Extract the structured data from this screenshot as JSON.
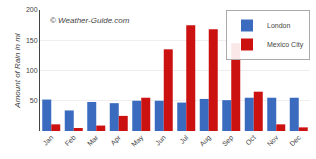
{
  "chart_data": {
    "type": "bar",
    "categories": [
      "Jan",
      "Feb",
      "Mar",
      "Apr",
      "May",
      "Jun",
      "Jul",
      "Aug",
      "Sep",
      "Oct",
      "Nov",
      "Dec"
    ],
    "series": [
      {
        "name": "London",
        "color": "#3a6bbf",
        "values": [
          52,
          34,
          48,
          46,
          50,
          50,
          47,
          53,
          51,
          55,
          55,
          55
        ]
      },
      {
        "name": "Mexico City",
        "color": "#cc1111",
        "values": [
          11,
          5,
          9,
          25,
          55,
          135,
          175,
          168,
          145,
          65,
          11,
          6
        ]
      }
    ],
    "y_label": "Amount of Rain in ml",
    "ylim": [
      0,
      200
    ],
    "yticks": [
      50,
      100,
      150,
      200
    ],
    "grid": true,
    "legend": "upper right",
    "annotations": [
      "© Weather-Guide.com"
    ]
  }
}
